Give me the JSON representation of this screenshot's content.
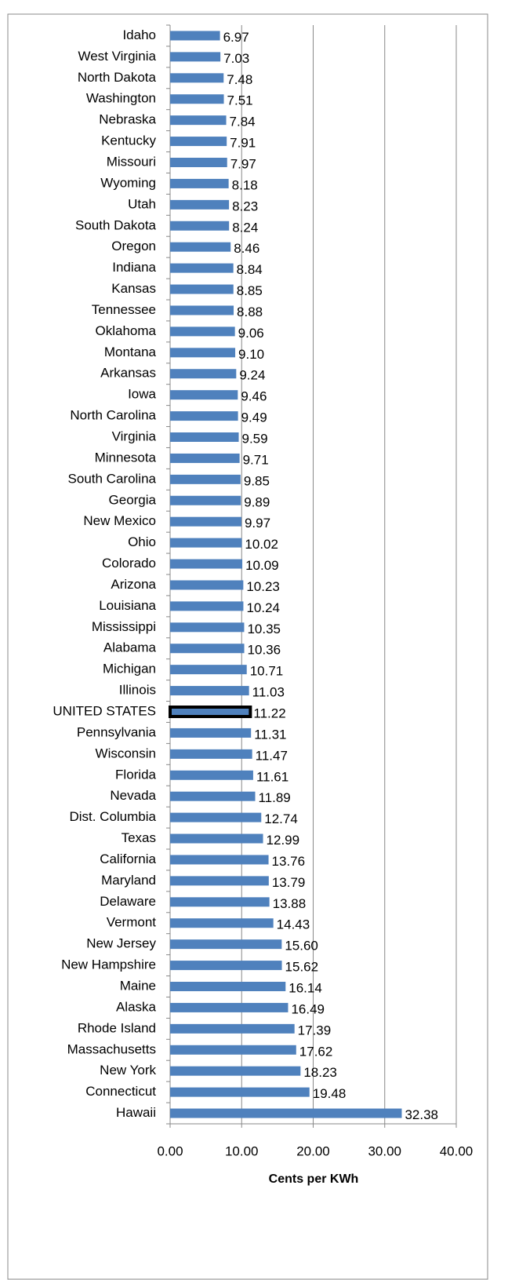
{
  "chart_data": {
    "type": "hbar",
    "x_label": "Cents per KWh",
    "categories": [
      "Idaho",
      "West Virginia",
      "North Dakota",
      "Washington",
      "Nebraska",
      "Kentucky",
      "Missouri",
      "Wyoming",
      "Utah",
      "South Dakota",
      "Oregon",
      "Indiana",
      "Kansas",
      "Tennessee",
      "Oklahoma",
      "Montana",
      "Arkansas",
      "Iowa",
      "North Carolina",
      "Virginia",
      "Minnesota",
      "South Carolina",
      "Georgia",
      "New Mexico",
      "Ohio",
      "Colorado",
      "Arizona",
      "Louisiana",
      "Mississippi",
      "Alabama",
      "Michigan",
      "Illinois",
      "UNITED STATES",
      "Pennsylvania",
      "Wisconsin",
      "Florida",
      "Nevada",
      "Dist. Columbia",
      "Texas",
      "California",
      "Maryland",
      "Delaware",
      "Vermont",
      "New Jersey",
      "New Hampshire",
      "Maine",
      "Alaska",
      "Rhode Island",
      "Massachusetts",
      "New York",
      "Connecticut",
      "Hawaii"
    ],
    "values": [
      6.97,
      7.03,
      7.48,
      7.51,
      7.84,
      7.91,
      7.97,
      8.18,
      8.23,
      8.24,
      8.46,
      8.84,
      8.85,
      8.88,
      9.06,
      9.1,
      9.24,
      9.46,
      9.49,
      9.59,
      9.71,
      9.85,
      9.89,
      9.97,
      10.02,
      10.09,
      10.23,
      10.24,
      10.35,
      10.36,
      10.71,
      11.03,
      11.22,
      11.31,
      11.47,
      11.61,
      11.89,
      12.74,
      12.99,
      13.76,
      13.79,
      13.88,
      14.43,
      15.6,
      15.62,
      16.14,
      16.49,
      17.39,
      17.62,
      18.23,
      19.48,
      32.38
    ],
    "value_labels": [
      "6.97",
      "7.03",
      "7.48",
      "7.51",
      "7.84",
      "7.91",
      "7.97",
      "8.18",
      "8.23",
      "8.24",
      "8.46",
      "8.84",
      "8.85",
      "8.88",
      "9.06",
      "9.10",
      "9.24",
      "9.46",
      "9.49",
      "9.59",
      "9.71",
      "9.85",
      "9.89",
      "9.97",
      "10.02",
      "10.09",
      "10.23",
      "10.24",
      "10.35",
      "10.36",
      "10.71",
      "11.03",
      "11.22",
      "11.31",
      "11.47",
      "11.61",
      "11.89",
      "12.74",
      "12.99",
      "13.76",
      "13.79",
      "13.88",
      "14.43",
      "15.60",
      "15.62",
      "16.14",
      "16.49",
      "17.39",
      "17.62",
      "18.23",
      "19.48",
      "32.38"
    ],
    "color": "#4f81bd",
    "highlight": {
      "index": 32,
      "edge_color": "#000000"
    },
    "xlim": [
      0,
      40
    ],
    "xticks": [
      {
        "value": 0,
        "label": "0.00"
      },
      {
        "value": 10,
        "label": "10.00"
      },
      {
        "value": 20,
        "label": "20.00"
      },
      {
        "value": 30,
        "label": "30.00"
      },
      {
        "value": 40,
        "label": "40.00"
      }
    ],
    "grid": true
  }
}
